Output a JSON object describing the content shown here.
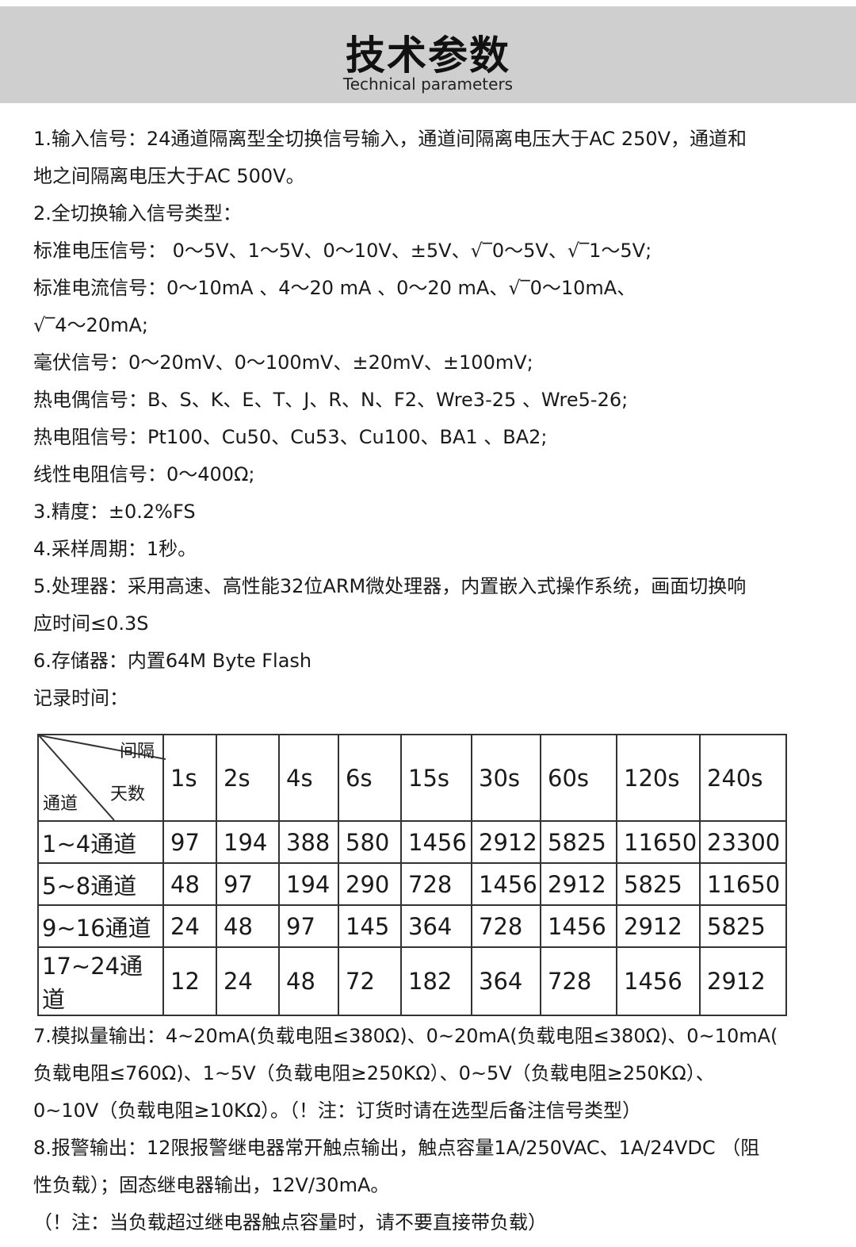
{
  "header": {
    "title": "技术参数",
    "subtitle": "Technical parameters"
  },
  "lines_top": [
    "1.输入信号：24通道隔离型全切换信号输入，通道间隔离电压大于AC 250V，通道和",
    "地之间隔离电压大于AC 500V。",
    "2.全切换输入信号类型：",
    "标准电压信号： 0～5V、1～5V、0～10V、±5V、√‾0～5V、√‾1～5V;",
    "标准电流信号：0～10mA 、4～20 mA 、0～20 mA、√‾0～10mA、",
    "√‾4～20mA;",
    "毫伏信号：0～20mV、0～100mV、±20mV、±100mV;",
    "热电偶信号：B、S、K、E、T、J、R、N、F2、Wre3-25 、Wre5-26;",
    "热电阻信号：Pt100、Cu50、Cu53、Cu100、BA1 、BA2;",
    "线性电阻信号：0～400Ω;",
    "3.精度：±0.2%FS",
    "4.采样周期：1秒。",
    "5.处理器：采用高速、高性能32位ARM微处理器，内置嵌入式操作系统，画面切换响",
    "应时间≤0.3S",
    "6.存储器：内置64M Byte Flash",
    "记录时间："
  ],
  "table": {
    "corner": {
      "interval": "间隔",
      "days": "天数",
      "channel": "通道"
    },
    "columns": [
      "1s",
      "2s",
      "4s",
      "6s",
      "15s",
      "30s",
      "60s",
      "120s",
      "240s"
    ],
    "rows": [
      {
        "label": "1~4通道",
        "values": [
          "97",
          "194",
          "388",
          "580",
          "1456",
          "2912",
          "5825",
          "11650",
          "23300"
        ]
      },
      {
        "label": "5~8通道",
        "values": [
          "48",
          "97",
          "194",
          "290",
          "728",
          "1456",
          "2912",
          "5825",
          "11650"
        ]
      },
      {
        "label": "9~16通道",
        "values": [
          "24",
          "48",
          "97",
          "145",
          "364",
          "728",
          "1456",
          "2912",
          "5825"
        ]
      },
      {
        "label": "17~24通道",
        "values": [
          "12",
          "24",
          "48",
          "72",
          "182",
          "364",
          "728",
          "1456",
          "2912"
        ]
      }
    ]
  },
  "lines_bottom": [
    "7.模拟量输出：4~20mA(负载电阻≤380Ω)、0~20mA(负载电阻≤380Ω)、0~10mA(",
    "负载电阻≤760Ω)、1~5V（负载电阻≥250KΩ）、0~5V（负载电阻≥250KΩ）、",
    "0~10V（负载电阻≥10KΩ）。（！注：订货时请在选型后备注信号类型）",
    "8.报警输出：12限报警继电器常开触点输出，触点容量1A/250VAC、1A/24VDC （阻",
    "性负载）；固态继电器输出，12V/30mA。",
    "（！注：当负载超过继电器触点容量时，请不要直接带负载）"
  ]
}
